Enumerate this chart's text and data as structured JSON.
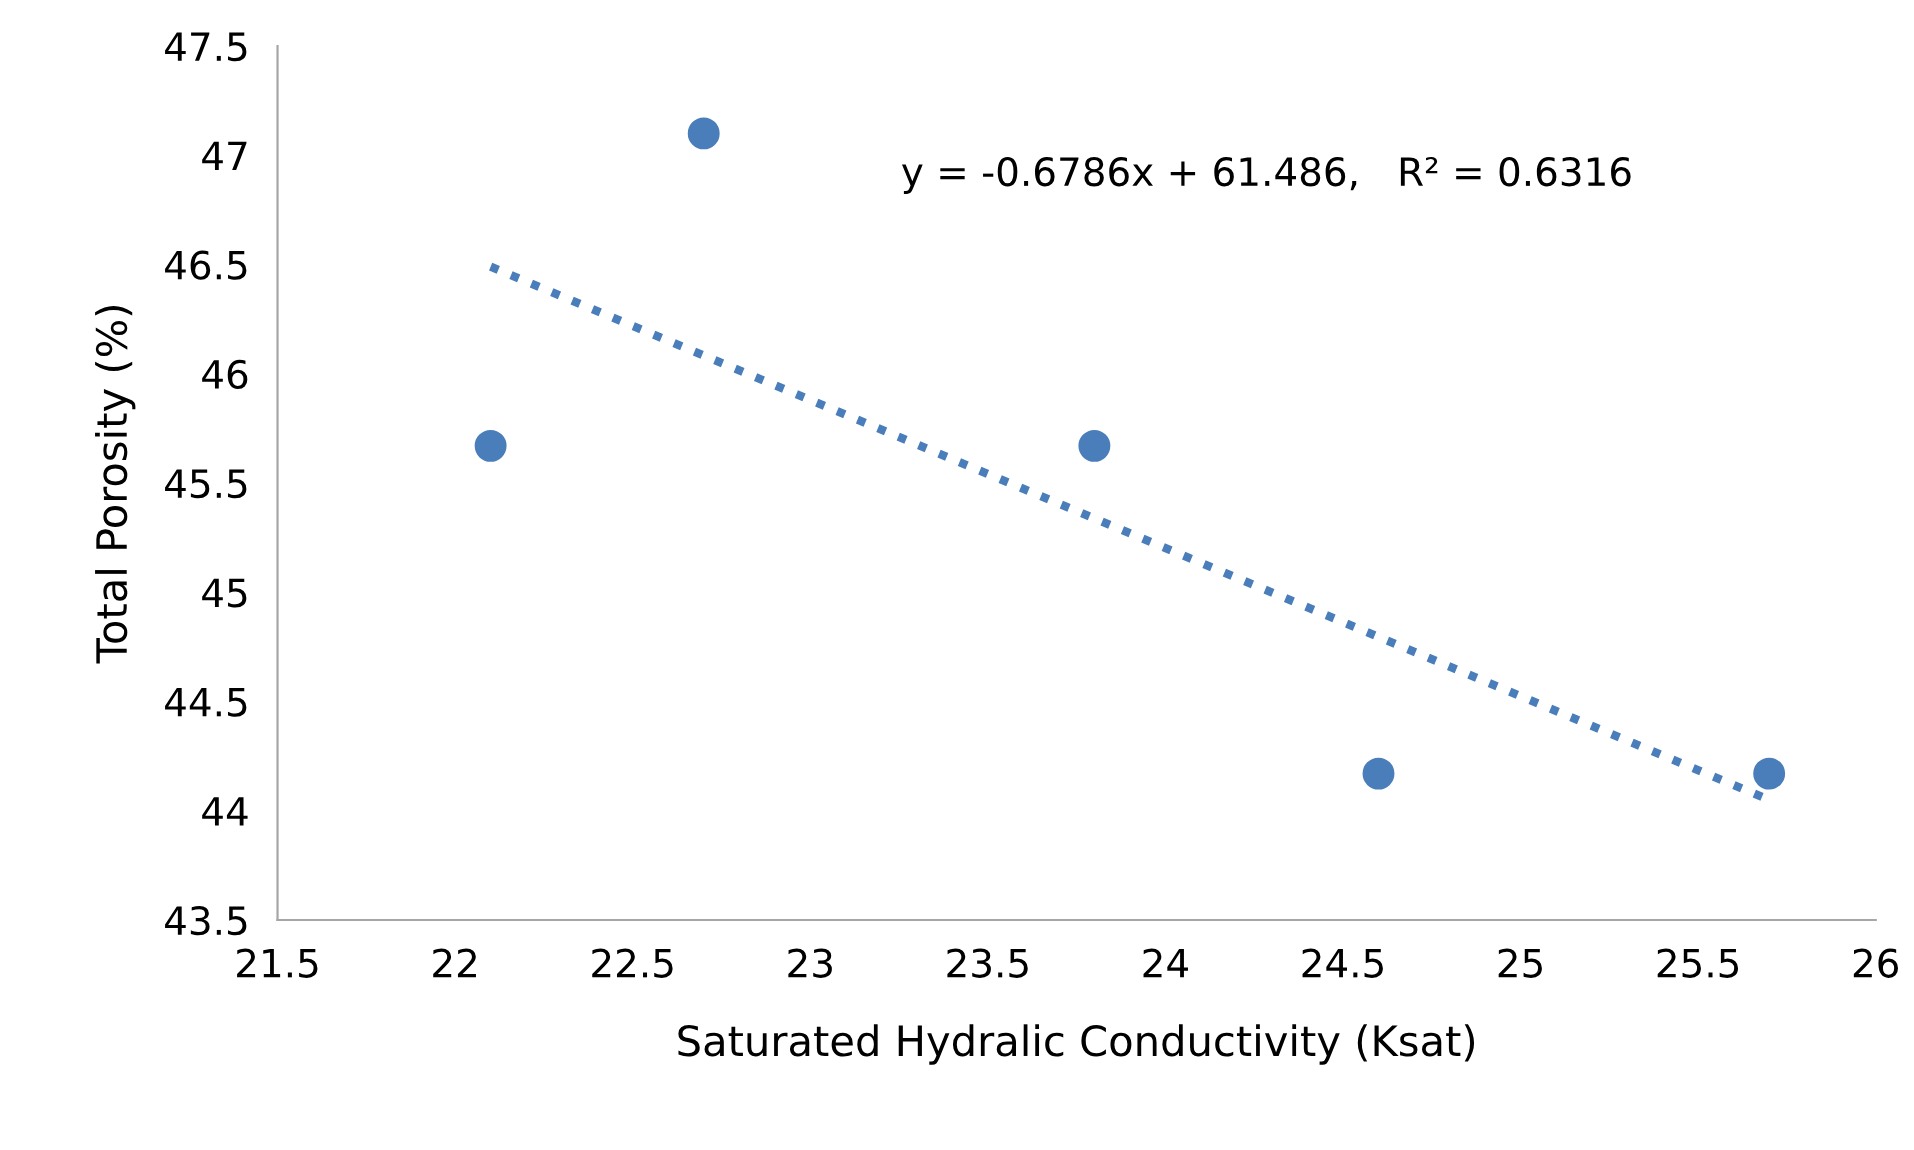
{
  "chart_data": {
    "type": "scatter",
    "xlabel": "Saturated Hydralic Conductivity (Ksat)",
    "ylabel": "Total Porosity (%)",
    "annotations": [
      "y = -0.6786x + 61.486,   R² = 0.6316"
    ],
    "xlim": [
      21.5,
      26
    ],
    "xticks": [
      21.5,
      22,
      22.5,
      23,
      23.5,
      24,
      24.5,
      25,
      25.5,
      26
    ],
    "ylim": [
      43.5,
      47.5
    ],
    "yticks": [
      43.5,
      44,
      44.5,
      45,
      45.5,
      46,
      46.5,
      47,
      47.5
    ],
    "grid": false,
    "legend": false,
    "marker": "circle",
    "series": [
      {
        "color": "#4a7ebb",
        "x": [
          22.1,
          22.7,
          23.8,
          24.6,
          25.7
        ],
        "values": [
          45.67,
          47.1,
          45.67,
          44.17,
          44.17
        ]
      },
      {
        "type": "line",
        "color": "#4a7ebb",
        "line_style": "dotted",
        "marker": "none",
        "x": [
          22.1,
          25.7
        ],
        "values": [
          46.49,
          44.05
        ]
      }
    ]
  }
}
